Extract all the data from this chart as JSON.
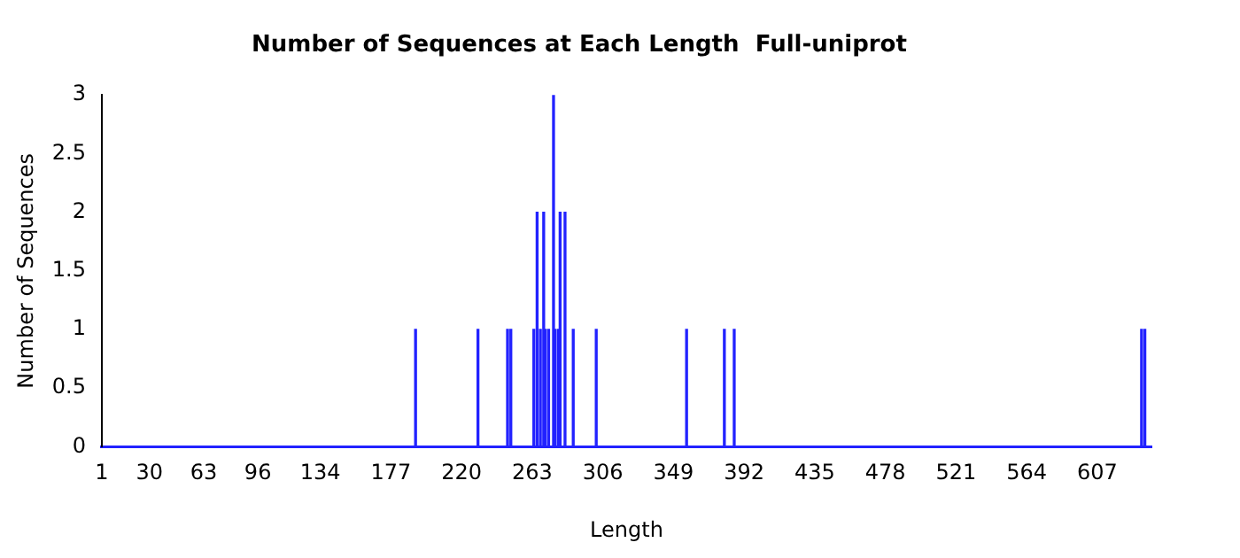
{
  "chart_data": {
    "type": "bar",
    "title": "Number of Sequences at Each Length  Full-uniprot",
    "xlabel": "Length",
    "ylabel": "Number of Sequences",
    "x": [
      192,
      230,
      248,
      250,
      264,
      266,
      268,
      270,
      271,
      273,
      276,
      277,
      279,
      280,
      283,
      288,
      302,
      357,
      380,
      386,
      634,
      636
    ],
    "values": [
      1,
      1,
      1,
      1,
      1,
      2,
      1,
      2,
      1,
      1,
      3,
      1,
      1,
      2,
      2,
      1,
      1,
      1,
      1,
      1,
      1,
      1
    ],
    "color": "#2222ff",
    "xlim": [
      1,
      640
    ],
    "xticks": [
      1,
      30,
      63,
      96,
      134,
      177,
      220,
      263,
      306,
      349,
      392,
      435,
      478,
      521,
      564,
      607
    ],
    "ylim": [
      0,
      3
    ],
    "yticks": [
      0,
      0.5,
      1,
      1.5,
      2,
      2.5,
      3
    ],
    "grid": false,
    "legend": false
  }
}
